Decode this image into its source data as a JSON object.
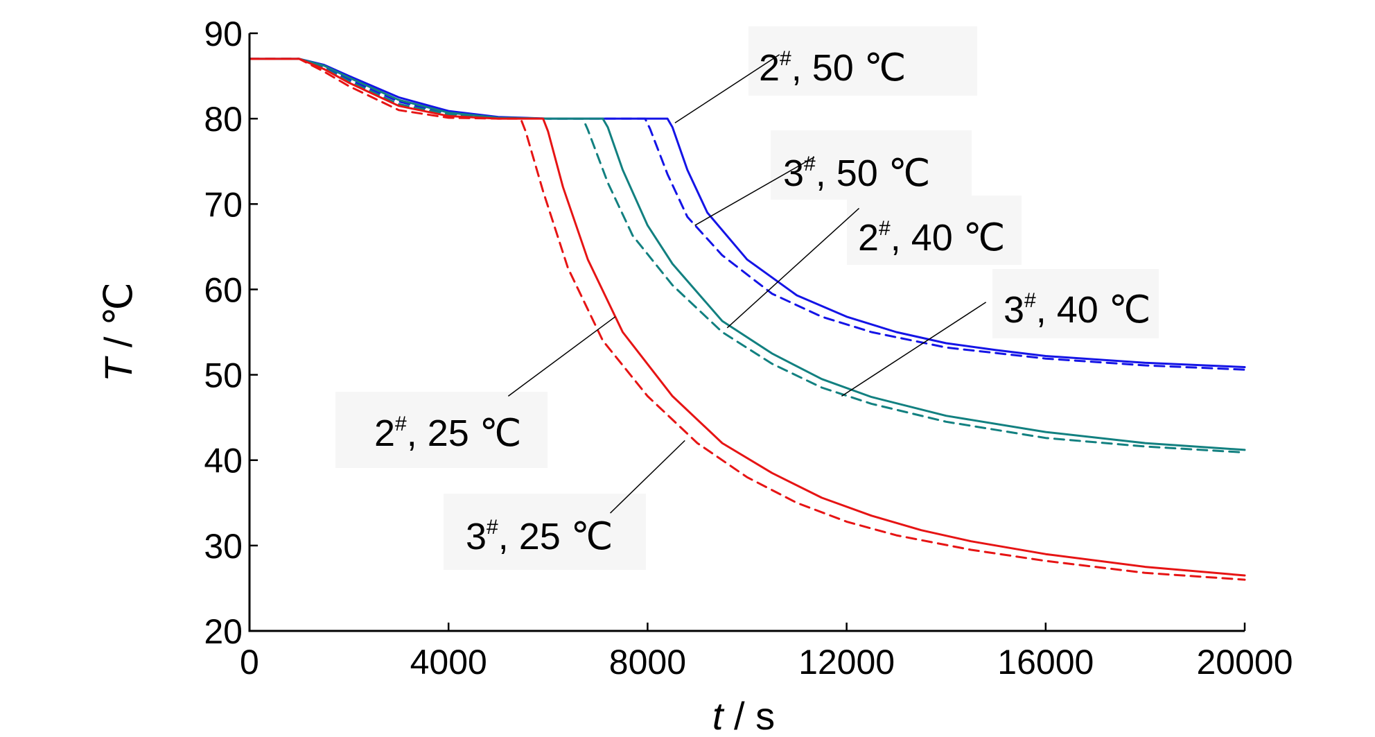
{
  "chart_data": {
    "type": "line",
    "xlabel": "t",
    "xunit": "s",
    "ylabel": "T",
    "yunit": "℃",
    "axis_sep": " / ",
    "xlim": [
      0,
      20000
    ],
    "ylim": [
      20,
      90
    ],
    "xticks": [
      0,
      4000,
      8000,
      12000,
      16000,
      20000
    ],
    "yticks": [
      20,
      30,
      40,
      50,
      60,
      70,
      80,
      90
    ],
    "grid": false,
    "legend": "none",
    "series": [
      {
        "name": "2#, 50 ℃",
        "color": "#1414e6",
        "dash": "solid",
        "points": [
          [
            0,
            87
          ],
          [
            1000,
            87
          ],
          [
            1500,
            86.3
          ],
          [
            2000,
            85
          ],
          [
            3000,
            82.5
          ],
          [
            4000,
            80.9
          ],
          [
            5000,
            80.2
          ],
          [
            6000,
            80
          ],
          [
            8400,
            80
          ],
          [
            8500,
            79
          ],
          [
            8800,
            74
          ],
          [
            9200,
            69
          ],
          [
            10000,
            63.5
          ],
          [
            11000,
            59.3
          ],
          [
            12000,
            56.8
          ],
          [
            13000,
            55
          ],
          [
            14000,
            53.7
          ],
          [
            15000,
            52.9
          ],
          [
            16000,
            52.2
          ],
          [
            18000,
            51.4
          ],
          [
            20000,
            50.9
          ]
        ]
      },
      {
        "name": "3#, 50 ℃",
        "color": "#1414e6",
        "dash": "dashed",
        "points": [
          [
            0,
            87
          ],
          [
            1000,
            87
          ],
          [
            1500,
            86
          ],
          [
            2000,
            84.6
          ],
          [
            3000,
            82
          ],
          [
            4000,
            80.6
          ],
          [
            5000,
            80.1
          ],
          [
            6000,
            80
          ],
          [
            7950,
            80
          ],
          [
            8050,
            78.8
          ],
          [
            8400,
            73.5
          ],
          [
            8800,
            68.5
          ],
          [
            9500,
            64
          ],
          [
            10500,
            59.5
          ],
          [
            11500,
            56.8
          ],
          [
            12500,
            55
          ],
          [
            14000,
            53.2
          ],
          [
            16000,
            51.9
          ],
          [
            18000,
            51.1
          ],
          [
            20000,
            50.6
          ]
        ]
      },
      {
        "name": "2#, 40 ℃",
        "color": "#128080",
        "dash": "solid",
        "points": [
          [
            0,
            87
          ],
          [
            1000,
            87
          ],
          [
            1500,
            86.2
          ],
          [
            2000,
            84.8
          ],
          [
            3000,
            82.2
          ],
          [
            4000,
            80.7
          ],
          [
            5000,
            80.1
          ],
          [
            6000,
            80
          ],
          [
            7100,
            80
          ],
          [
            7200,
            79
          ],
          [
            7500,
            74
          ],
          [
            8000,
            67.5
          ],
          [
            8500,
            63
          ],
          [
            9500,
            56.3
          ],
          [
            10500,
            52.5
          ],
          [
            11500,
            49.5
          ],
          [
            12500,
            47.4
          ],
          [
            14000,
            45.2
          ],
          [
            16000,
            43.3
          ],
          [
            18000,
            42
          ],
          [
            20000,
            41.2
          ]
        ]
      },
      {
        "name": "3#, 40 ℃",
        "color": "#128080",
        "dash": "dashed",
        "points": [
          [
            0,
            87
          ],
          [
            1000,
            87
          ],
          [
            1500,
            85.9
          ],
          [
            2000,
            84.4
          ],
          [
            3000,
            81.7
          ],
          [
            4000,
            80.5
          ],
          [
            5000,
            80.1
          ],
          [
            6000,
            80
          ],
          [
            6700,
            80
          ],
          [
            6800,
            78.7
          ],
          [
            7200,
            72.5
          ],
          [
            7700,
            66.3
          ],
          [
            8500,
            60.5
          ],
          [
            9500,
            55
          ],
          [
            10500,
            51.3
          ],
          [
            11500,
            48.5
          ],
          [
            12500,
            46.6
          ],
          [
            14000,
            44.5
          ],
          [
            16000,
            42.6
          ],
          [
            18000,
            41.6
          ],
          [
            20000,
            40.9
          ]
        ]
      },
      {
        "name": "2#, 25 ℃",
        "color": "#e61414",
        "dash": "solid",
        "points": [
          [
            0,
            87
          ],
          [
            1000,
            87
          ],
          [
            1500,
            85.8
          ],
          [
            2000,
            84.2
          ],
          [
            3000,
            81.5
          ],
          [
            4000,
            80.3
          ],
          [
            5000,
            80
          ],
          [
            5900,
            80
          ],
          [
            6000,
            78.5
          ],
          [
            6300,
            72
          ],
          [
            6800,
            63.5
          ],
          [
            7500,
            55
          ],
          [
            8500,
            47.5
          ],
          [
            9500,
            42
          ],
          [
            10500,
            38.5
          ],
          [
            11500,
            35.6
          ],
          [
            12500,
            33.5
          ],
          [
            13500,
            31.8
          ],
          [
            14500,
            30.5
          ],
          [
            16000,
            29
          ],
          [
            18000,
            27.5
          ],
          [
            20000,
            26.5
          ]
        ]
      },
      {
        "name": "3#, 25 ℃",
        "color": "#e61414",
        "dash": "dashed",
        "points": [
          [
            0,
            87
          ],
          [
            1000,
            87
          ],
          [
            1500,
            85.5
          ],
          [
            2000,
            83.8
          ],
          [
            3000,
            81
          ],
          [
            4000,
            80.1
          ],
          [
            5000,
            80
          ],
          [
            5450,
            80
          ],
          [
            5550,
            78.5
          ],
          [
            5900,
            71.5
          ],
          [
            6400,
            62.5
          ],
          [
            7100,
            54
          ],
          [
            8000,
            47.5
          ],
          [
            9000,
            42
          ],
          [
            10000,
            38
          ],
          [
            11000,
            35
          ],
          [
            12000,
            32.8
          ],
          [
            13000,
            31.2
          ],
          [
            14500,
            29.5
          ],
          [
            16000,
            28.2
          ],
          [
            18000,
            26.8
          ],
          [
            20000,
            26
          ]
        ]
      }
    ],
    "annotations": [
      {
        "base": "2",
        "sup": "#",
        "rest": ", 50 ℃"
      },
      {
        "base": "3",
        "sup": "#",
        "rest": ", 50 ℃"
      },
      {
        "base": "2",
        "sup": "#",
        "rest": ", 40 ℃"
      },
      {
        "base": "3",
        "sup": "#",
        "rest": ", 40 ℃"
      },
      {
        "base": "2",
        "sup": "#",
        "rest": ", 25 ℃"
      },
      {
        "base": "3",
        "sup": "#",
        "rest": ", 25 ℃"
      }
    ]
  }
}
